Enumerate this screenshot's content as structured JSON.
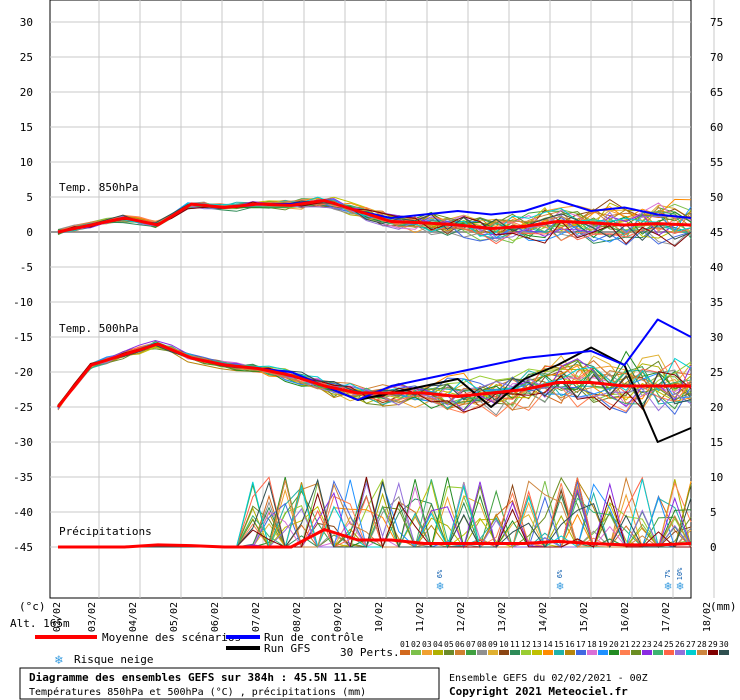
{
  "labels": {
    "temp850": "Temp. 850hPa",
    "temp500": "Temp. 500hPa",
    "precip": "Précipitations",
    "unit_left": "(°c)",
    "unit_right": "(mm)",
    "altitude": "Alt. 165m"
  },
  "legend": {
    "mean": "Moyenne des scénarios",
    "control": "Run de contrôle",
    "gfs": "Run GFS",
    "snow": "Risque neige",
    "perts": "30 Perts.",
    "pert_numbers": [
      "01",
      "02",
      "03",
      "04",
      "05",
      "06",
      "07",
      "08",
      "09",
      "10",
      "11",
      "12",
      "13",
      "14",
      "15",
      "16",
      "17",
      "18",
      "19",
      "20",
      "21",
      "22",
      "23",
      "24",
      "25",
      "26",
      "27",
      "28",
      "29",
      "30"
    ]
  },
  "info": {
    "title": "Diagramme des ensembles GEFS sur 384h : 45.5N 11.5E",
    "subtitle": "Températures 850hPa et 500hPa (°C) , précipitations (mm)",
    "run": "Ensemble GEFS du 02/02/2021 - 00Z",
    "copyright": "Copyright 2021 Meteociel.fr"
  },
  "colors": {
    "mean": "#ff0000",
    "control": "#0000ff",
    "gfs": "#000000",
    "snow": "#3a9de0",
    "perturbations": [
      "#d2691e",
      "#7cc04a",
      "#f0a030",
      "#b0b000",
      "#6a8a2a",
      "#d08030",
      "#40a040",
      "#909090",
      "#e0b030",
      "#8b4513",
      "#2e8b57",
      "#9acd32",
      "#c0c000",
      "#ff8c00",
      "#20b2aa",
      "#b8860b",
      "#4169e1",
      "#da70d6",
      "#1e90ff",
      "#228b22",
      "#ff7f50",
      "#6b8e23",
      "#8a2be2",
      "#3cb371",
      "#ff6347",
      "#9370db",
      "#00ced1",
      "#cd853f",
      "#800000",
      "#2f4f4f"
    ]
  },
  "chart_data": {
    "type": "line",
    "x_unit": "date",
    "x_start": "2021-02-02 00Z",
    "x_range_hours": [
      0,
      384
    ],
    "x_tick_labels": [
      "03/02",
      "04/02",
      "05/02",
      "06/02",
      "07/02",
      "08/02",
      "09/02",
      "10/02",
      "11/02",
      "12/02",
      "13/02",
      "14/02",
      "15/02",
      "16/02",
      "17/02",
      "18/02"
    ],
    "y_left": {
      "label": "(°c)",
      "range": [
        -45,
        30
      ],
      "ticks": [
        30,
        25,
        20,
        15,
        10,
        5,
        0,
        -5,
        -10,
        -15,
        -20,
        -25,
        -30,
        -35,
        -40,
        -45
      ]
    },
    "y_right": {
      "label": "(mm)",
      "range": [
        0,
        75
      ],
      "ticks": [
        75,
        70,
        65,
        60,
        55,
        50,
        45,
        40,
        35,
        30,
        25,
        20,
        15,
        10,
        5,
        0
      ]
    },
    "grid": true,
    "snow_risk": [
      {
        "date": "11/02",
        "value": "6%"
      },
      {
        "date": "14/02",
        "value": "6%"
      },
      {
        "date": "17/02",
        "value": "7%"
      },
      {
        "date": "18/02",
        "value": "10%"
      }
    ],
    "series": [
      {
        "name": "Moyenne des scénarios",
        "panel": "Temp. 850hPa",
        "axis": "left",
        "x": [
          "02/02",
          "02/02",
          "03/02",
          "03/02",
          "04/02",
          "05/02",
          "06/02",
          "07/02",
          "07/02",
          "08/02",
          "09/02",
          "10/02",
          "11/02",
          "12/02",
          "13/02",
          "14/02",
          "15/02",
          "16/02",
          "17/02",
          "18/02"
        ],
        "values": [
          0,
          1,
          2,
          1,
          4,
          3.5,
          4,
          3.8,
          4.5,
          3,
          1.5,
          1.3,
          1.0,
          0.5,
          0.8,
          1.5,
          1.3,
          1.0,
          1.2,
          1.0
        ]
      },
      {
        "name": "Moyenne des scénarios",
        "panel": "Temp. 500hPa",
        "axis": "left",
        "x": [
          "02/02",
          "02/02",
          "03/02",
          "03/02",
          "04/02",
          "05/02",
          "06/02",
          "07/02",
          "07/02",
          "08/02",
          "09/02",
          "10/02",
          "11/02",
          "12/02",
          "13/02",
          "14/02",
          "15/02",
          "16/02",
          "17/02",
          "18/02"
        ],
        "values": [
          -25,
          -19,
          -17.5,
          -16,
          -18,
          -19,
          -19.5,
          -20.5,
          -22,
          -23,
          -23,
          -23,
          -23.5,
          -23,
          -22.5,
          -21.5,
          -21.5,
          -22,
          -22,
          -22
        ]
      },
      {
        "name": "Moyenne des scénarios",
        "panel": "Précipitations",
        "axis": "right",
        "x": [
          "02/02",
          "02/02",
          "03/02",
          "03/02",
          "04/02",
          "05/02",
          "06/02",
          "07/02",
          "07/02",
          "08/02",
          "09/02",
          "10/02",
          "11/02",
          "12/02",
          "13/02",
          "14/02",
          "15/02",
          "16/02",
          "17/02",
          "18/02"
        ],
        "values": [
          0,
          0,
          0,
          0.3,
          0.2,
          0,
          0,
          0,
          2.5,
          1.0,
          1.0,
          0.5,
          0.5,
          0.5,
          0.5,
          0.8,
          0.5,
          0.3,
          0.3,
          0.5
        ]
      },
      {
        "name": "Run de contrôle",
        "panel": "Temp. 850hPa",
        "axis": "left",
        "x": [
          "02/02",
          "02/02",
          "03/02",
          "03/02",
          "04/02",
          "05/02",
          "06/02",
          "07/02",
          "07/02",
          "08/02",
          "09/02",
          "10/02",
          "11/02",
          "12/02",
          "13/02",
          "14/02",
          "15/02",
          "16/02",
          "17/02",
          "18/02"
        ],
        "values": [
          0,
          1,
          2,
          1,
          4,
          3.5,
          4,
          4,
          4.5,
          3,
          2,
          2.5,
          3,
          2.5,
          3,
          4.5,
          3,
          3.5,
          2.5,
          2
        ]
      },
      {
        "name": "Run de contrôle",
        "panel": "Temp. 500hPa",
        "axis": "left",
        "x": [
          "02/02",
          "02/02",
          "03/02",
          "03/02",
          "04/02",
          "05/02",
          "06/02",
          "07/02",
          "07/02",
          "08/02",
          "09/02",
          "10/02",
          "11/02",
          "12/02",
          "13/02",
          "14/02",
          "15/02",
          "16/02",
          "17/02",
          "18/02"
        ],
        "values": [
          -25,
          -19,
          -17.5,
          -16,
          -18,
          -19,
          -19.5,
          -20,
          -22,
          -24,
          -22,
          -21,
          -20,
          -19,
          -18,
          -17.5,
          -17,
          -19,
          -12.5,
          -15
        ]
      },
      {
        "name": "Run GFS",
        "panel": "Temp. 500hPa",
        "axis": "left",
        "x": [
          "02/02",
          "02/02",
          "03/02",
          "03/02",
          "04/02",
          "05/02",
          "06/02",
          "07/02",
          "07/02",
          "08/02",
          "09/02",
          "10/02",
          "11/02",
          "12/02",
          "13/02",
          "14/02",
          "15/02",
          "16/02",
          "17/02",
          "18/02"
        ],
        "values": [
          -25,
          -19,
          -17.5,
          -16,
          -18,
          -19,
          -19.5,
          -20.5,
          -22,
          -24,
          -23,
          -22,
          -21,
          -25,
          -21,
          -19,
          -16.5,
          -19,
          -30,
          -28
        ]
      }
    ]
  }
}
